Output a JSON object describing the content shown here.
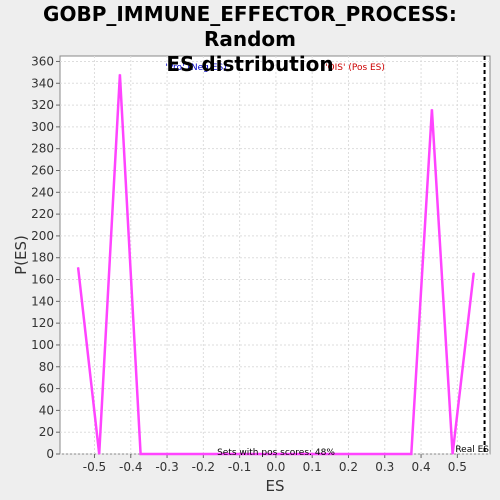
{
  "chart_data": {
    "type": "line",
    "title_line1": "GOBP_IMMUNE_EFFECTOR_PROCESS: Random",
    "title_line2": "ES distribution",
    "xlabel": "ES",
    "ylabel": "P(ES)",
    "xlim": [
      -0.595,
      0.59
    ],
    "ylim": [
      0,
      365
    ],
    "xticks": [
      -0.5,
      -0.4,
      -0.3,
      -0.2,
      -0.1,
      0.0,
      0.1,
      0.2,
      0.3,
      0.4,
      0.5
    ],
    "xtick_labels": [
      "-0.5",
      "-0.4",
      "-0.3",
      "-0.2",
      "-0.1",
      "0.0",
      "0.1",
      "0.2",
      "0.3",
      "0.4",
      "0.5"
    ],
    "yticks": [
      0,
      20,
      40,
      60,
      80,
      100,
      120,
      140,
      160,
      180,
      200,
      220,
      240,
      260,
      280,
      300,
      320,
      340,
      360
    ],
    "grid": true,
    "series": [
      {
        "color": "#ff44ff",
        "x": [
          -0.545,
          -0.487,
          -0.43,
          -0.373,
          0.373,
          0.43,
          0.487,
          0.545
        ],
        "y": [
          171,
          0,
          348,
          0,
          0,
          316,
          0,
          166
        ]
      }
    ],
    "real_es": {
      "x": 0.575,
      "label": "Real ES",
      "color": "#000000"
    },
    "annotations": {
      "neg": {
        "text": "'Pro' (Neg ES)",
        "color": "#0000cc"
      },
      "pos": {
        "text": "'OIS' (Pos ES)",
        "color": "#cc0000"
      },
      "center": {
        "text": "Sets with pos scores: 48%",
        "color": "#000000"
      }
    }
  }
}
